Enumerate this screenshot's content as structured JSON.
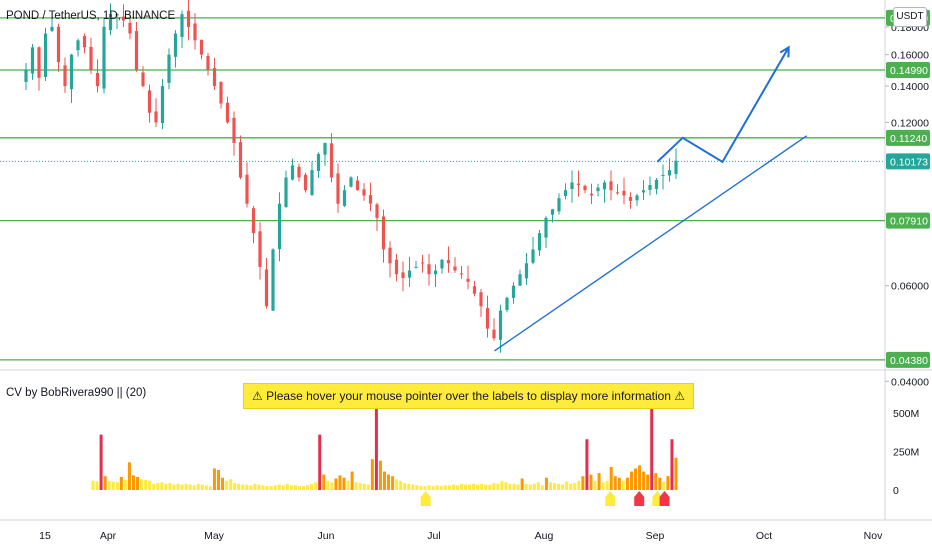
{
  "header": {
    "symbol_title": "POND / TetherUS, 1D, BINANCE",
    "unit": "USDT"
  },
  "indicator": {
    "title": "CV by BobRivera990 || (20)",
    "notice": "⚠ Please hover your mouse pointer over the labels to display more information ⚠"
  },
  "colors": {
    "up": "#26a69a",
    "down": "#ef5350",
    "level_line": "#4caf50",
    "trend": "#1e6fd6",
    "vol_high": "#e0304f",
    "vol_mid": "#ff9800",
    "vol_low": "#ffeb3b",
    "marker_yellow": "#ffeb3b",
    "marker_red": "#f23645"
  },
  "chart_data": [
    {
      "type": "candlestick",
      "title": "POND / TetherUS, 1D, BINANCE",
      "x_ticks": [
        "15",
        "Apr",
        "May",
        "Jun",
        "Jul",
        "Aug",
        "Sep",
        "Oct",
        "Nov"
      ],
      "y_ticks": [
        "0.18000",
        "0.16000",
        "0.14000",
        "0.12000",
        "0.06000",
        "0.04000"
      ],
      "y_scale": "log",
      "ylim": [
        0.0425,
        0.195
      ],
      "levels": [
        {
          "label": "0.18700",
          "value": 0.187
        },
        {
          "label": "0.14990",
          "value": 0.1499
        },
        {
          "label": "0.11240",
          "value": 0.1124
        },
        {
          "label": "0.07910",
          "value": 0.0791
        },
        {
          "label": "0.04380",
          "value": 0.0438
        }
      ],
      "last_price": {
        "label": "0.10173",
        "value": 0.10173
      },
      "closes_approx": [
        0.15,
        0.165,
        0.145,
        0.175,
        0.18,
        0.155,
        0.14,
        0.16,
        0.17,
        0.165,
        0.15,
        0.14,
        0.18,
        0.19,
        0.19,
        0.185,
        0.175,
        0.15,
        0.14,
        0.125,
        0.12,
        0.14,
        0.16,
        0.175,
        0.19,
        0.18,
        0.17,
        0.16,
        0.15,
        0.14,
        0.13,
        0.12,
        0.11,
        0.095,
        0.085,
        0.075,
        0.065,
        0.055,
        0.07,
        0.085,
        0.095,
        0.1,
        0.095,
        0.09,
        0.098,
        0.105,
        0.11,
        0.095,
        0.085,
        0.09,
        0.095,
        0.09,
        0.088,
        0.085,
        0.08,
        0.07,
        0.066,
        0.063,
        0.062,
        0.064,
        0.065,
        0.066,
        0.063,
        0.064,
        0.067,
        0.066,
        0.064,
        0.063,
        0.061,
        0.058,
        0.055,
        0.05,
        0.048,
        0.054,
        0.057,
        0.06,
        0.063,
        0.066,
        0.07,
        0.075,
        0.08,
        0.083,
        0.087,
        0.09,
        0.093,
        0.092,
        0.09,
        0.088,
        0.091,
        0.093,
        0.09,
        0.089,
        0.088,
        0.086,
        0.088,
        0.09,
        0.092,
        0.094,
        0.096,
        0.098,
        0.102
      ],
      "projection": [
        {
          "date": "Sep 3",
          "value": 0.1015
        },
        {
          "date": "Sep 10",
          "value": 0.1124
        },
        {
          "date": "Sep 21",
          "value": 0.1015
        },
        {
          "date": "Oct 1",
          "value": 0.165
        }
      ],
      "support_trendline": [
        {
          "date": "Jul 20",
          "value": 0.0455
        },
        {
          "date": "Oct 1",
          "value": 0.1124
        }
      ]
    },
    {
      "type": "bar",
      "title": "CV by BobRivera990 || (20)",
      "y_ticks": [
        "500M",
        "250M",
        "0"
      ],
      "ylim": [
        0,
        520
      ],
      "volumes_millions": [
        60,
        55,
        360,
        90,
        60,
        55,
        50,
        85,
        65,
        180,
        95,
        85,
        70,
        65,
        60,
        40,
        45,
        50,
        40,
        45,
        35,
        40,
        35,
        40,
        35,
        30,
        40,
        35,
        30,
        25,
        140,
        130,
        80,
        60,
        70,
        45,
        40,
        35,
        35,
        30,
        40,
        35,
        30,
        25,
        25,
        30,
        35,
        30,
        40,
        30,
        30,
        25,
        25,
        30,
        40,
        50,
        360,
        100,
        60,
        50,
        75,
        95,
        80,
        60,
        120,
        50,
        45,
        40,
        35,
        200,
        560,
        190,
        120,
        100,
        90,
        70,
        60,
        45,
        40,
        35,
        30,
        25,
        25,
        30,
        25,
        30,
        25,
        30,
        30,
        35,
        30,
        40,
        35,
        35,
        40,
        35,
        40,
        35,
        35,
        45,
        40,
        60,
        50,
        40,
        40,
        35,
        75,
        40,
        35,
        40,
        50,
        30,
        80,
        50,
        45,
        40,
        35,
        55,
        40,
        45,
        60,
        90,
        330,
        100,
        60,
        110,
        50,
        60,
        150,
        90,
        80,
        60,
        80,
        120,
        140,
        160,
        120,
        100,
        590,
        110,
        80,
        55,
        90,
        330,
        210
      ],
      "markers": [
        {
          "date": "Jul 1",
          "color": "yellow"
        },
        {
          "date": "Aug 21",
          "color": "yellow"
        },
        {
          "date": "Aug 29",
          "color": "red"
        },
        {
          "date": "Sep 3",
          "color": "yellow"
        },
        {
          "date": "Sep 5",
          "color": "red"
        }
      ]
    }
  ]
}
